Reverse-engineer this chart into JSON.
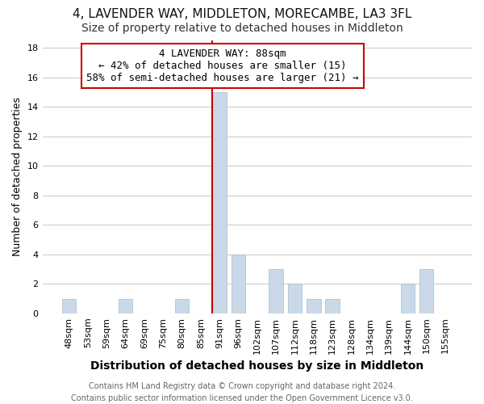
{
  "title": "4, LAVENDER WAY, MIDDLETON, MORECAMBE, LA3 3FL",
  "subtitle": "Size of property relative to detached houses in Middleton",
  "xlabel": "Distribution of detached houses by size in Middleton",
  "ylabel": "Number of detached properties",
  "categories": [
    "48sqm",
    "53sqm",
    "59sqm",
    "64sqm",
    "69sqm",
    "75sqm",
    "80sqm",
    "85sqm",
    "91sqm",
    "96sqm",
    "102sqm",
    "107sqm",
    "112sqm",
    "118sqm",
    "123sqm",
    "128sqm",
    "134sqm",
    "139sqm",
    "144sqm",
    "150sqm",
    "155sqm"
  ],
  "values": [
    1,
    0,
    0,
    1,
    0,
    0,
    1,
    0,
    15,
    4,
    0,
    3,
    2,
    1,
    1,
    0,
    0,
    0,
    2,
    3,
    0
  ],
  "bar_color": "#c9d9e8",
  "highlight_index": 8,
  "highlight_line_color": "#cc0000",
  "annotation_box_color": "#cc0000",
  "annotation_text": "4 LAVENDER WAY: 88sqm\n← 42% of detached houses are smaller (15)\n58% of semi-detached houses are larger (21) →",
  "ylim": [
    0,
    18
  ],
  "yticks": [
    0,
    2,
    4,
    6,
    8,
    10,
    12,
    14,
    16,
    18
  ],
  "footer": "Contains HM Land Registry data © Crown copyright and database right 2024.\nContains public sector information licensed under the Open Government Licence v3.0.",
  "background_color": "#ffffff",
  "plot_bg_color": "#ffffff",
  "grid_color": "#dddddd",
  "title_fontsize": 11,
  "subtitle_fontsize": 10,
  "xlabel_fontsize": 10,
  "ylabel_fontsize": 9,
  "annotation_fontsize": 9,
  "footer_fontsize": 7,
  "tick_fontsize": 8
}
